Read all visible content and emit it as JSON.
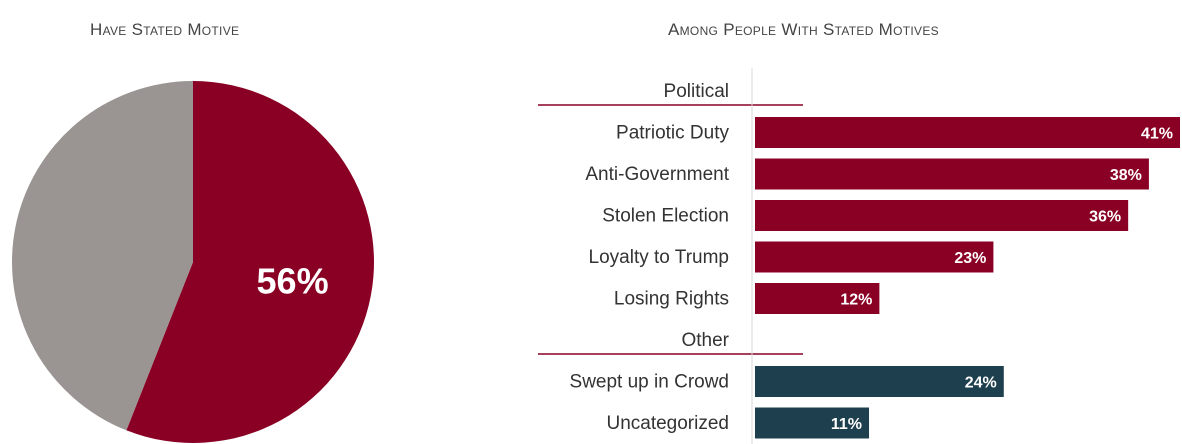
{
  "left_title": "Have Stated Motive",
  "right_title": "Among People With Stated Motives",
  "chart_data": [
    {
      "type": "pie",
      "title": "Have Stated Motive",
      "slices": [
        {
          "label": "56%",
          "value": 56,
          "color": "#8a0024"
        },
        {
          "label": "",
          "value": 44,
          "color": "#9a9592"
        }
      ]
    },
    {
      "type": "bar",
      "orientation": "horizontal",
      "title": "Among People With Stated Motives",
      "xlim": [
        0,
        41
      ],
      "groups": [
        {
          "name": "Political",
          "color": "#8a0024",
          "categories": [
            "Patriotic Duty",
            "Anti-Government",
            "Stolen Election",
            "Loyalty to Trump",
            "Losing Rights"
          ],
          "values": [
            41,
            38,
            36,
            23,
            12
          ],
          "labels": [
            "41%",
            "38%",
            "36%",
            "23%",
            "12%"
          ]
        },
        {
          "name": "Other",
          "color": "#1e3f4d",
          "categories": [
            "Swept up in Crowd",
            "Uncategorized"
          ],
          "values": [
            24,
            11
          ],
          "labels": [
            "24%",
            "11%"
          ]
        }
      ]
    }
  ]
}
